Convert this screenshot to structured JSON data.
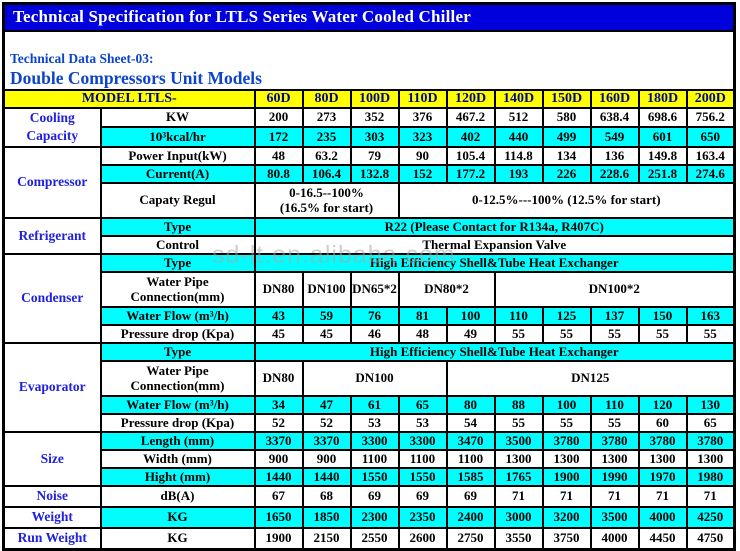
{
  "colors": {
    "title_bg": "#0000dd",
    "title_text": "#ffffff",
    "subtitle_text": "#0c44cc",
    "header_bg": "#ffff00",
    "header_text": "#000a8f",
    "category_text": "#2020dd",
    "cyan_row": "#00feff",
    "border": "#000000",
    "watermark": "#a8a8a8"
  },
  "header": {
    "title": "Technical Specification for LTLS Series Water Cooled Chiller",
    "sheet_label": "Technical Data Sheet-03:",
    "sheet_value": "Double Compressors Unit Models"
  },
  "watermark": "sd-lt.en.alibaba.com",
  "table": {
    "model_label": "MODEL LTLS-",
    "models": [
      "60D",
      "80D",
      "100D",
      "110D",
      "120D",
      "140D",
      "150D",
      "160D",
      "180D",
      "200D"
    ],
    "sections": [
      {
        "category": "Cooling\nCapacity",
        "rows": [
          {
            "label": "KW",
            "bg": "white",
            "cells": [
              "200",
              "273",
              "352",
              "376",
              "467.2",
              "512",
              "580",
              "638.4",
              "698.6",
              "756.2"
            ]
          },
          {
            "label": "10³kcal/hr",
            "bg": "cyan",
            "cells": [
              "172",
              "235",
              "303",
              "323",
              "402",
              "440",
              "499",
              "549",
              "601",
              "650"
            ]
          }
        ]
      },
      {
        "category": "Compressor",
        "rows": [
          {
            "label": "Power Input(kW)",
            "bg": "white",
            "cells": [
              "48",
              "63.2",
              "79",
              "90",
              "105.4",
              "114.8",
              "134",
              "136",
              "149.8",
              "163.4"
            ]
          },
          {
            "label": "Current(A)",
            "bg": "cyan",
            "cells": [
              "80.8",
              "106.4",
              "132.8",
              "152",
              "177.2",
              "193",
              "226",
              "228.6",
              "251.8",
              "274.6"
            ]
          },
          {
            "label": "Capaty Regul",
            "bg": "white",
            "tall": true,
            "cells": [
              {
                "t": "0-16.5--100%\n(16.5% for start)",
                "s": 3
              },
              {
                "t": "0-12.5%---100% (12.5% for start)",
                "s": 7
              }
            ]
          }
        ]
      },
      {
        "category": "Refrigerant",
        "rows": [
          {
            "label": "Type",
            "bg": "cyan",
            "cells": [
              {
                "t": "R22 (Please Contact for R134a, R407C)",
                "s": 10
              }
            ]
          },
          {
            "label": "Control",
            "bg": "white",
            "cells": [
              {
                "t": "Thermal Expansion Valve",
                "s": 10
              }
            ]
          }
        ]
      },
      {
        "category": "Condenser",
        "rows": [
          {
            "label": "Type",
            "bg": "cyan",
            "cells": [
              {
                "t": "High Efficiency Shell&Tube Heat Exchanger",
                "s": 10
              }
            ]
          },
          {
            "label": "Water Pipe\nConnection(mm)",
            "bg": "white",
            "tall": true,
            "cells": [
              {
                "t": "DN80",
                "s": 1
              },
              {
                "t": "DN100",
                "s": 1
              },
              {
                "t": "DN65*2",
                "s": 1
              },
              {
                "t": "DN80*2",
                "s": 2
              },
              {
                "t": "DN100*2",
                "s": 5
              }
            ]
          },
          {
            "label": "Water Flow (m³/h)",
            "bg": "cyan",
            "cells": [
              "43",
              "59",
              "76",
              "81",
              "100",
              "110",
              "125",
              "137",
              "150",
              "163"
            ]
          },
          {
            "label": "Pressure drop (Kpa)",
            "bg": "white",
            "cells": [
              "45",
              "45",
              "46",
              "48",
              "49",
              "55",
              "55",
              "55",
              "55",
              "55"
            ]
          }
        ]
      },
      {
        "category": "Evaporator",
        "rows": [
          {
            "label": "Type",
            "bg": "cyan",
            "cells": [
              {
                "t": "High Efficiency Shell&Tube Heat Exchanger",
                "s": 10
              }
            ]
          },
          {
            "label": "Water Pipe\nConnection(mm)",
            "bg": "white",
            "tall": true,
            "cells": [
              {
                "t": "DN80",
                "s": 1
              },
              {
                "t": "DN100",
                "s": 3
              },
              {
                "t": "DN125",
                "s": 6
              }
            ]
          },
          {
            "label": "Water Flow (m³/h)",
            "bg": "cyan",
            "cells": [
              "34",
              "47",
              "61",
              "65",
              "80",
              "88",
              "100",
              "110",
              "120",
              "130"
            ]
          },
          {
            "label": "Pressure drop (Kpa)",
            "bg": "white",
            "cells": [
              "52",
              "52",
              "53",
              "53",
              "54",
              "55",
              "55",
              "55",
              "60",
              "65"
            ]
          }
        ]
      },
      {
        "category": "Size",
        "rows": [
          {
            "label": "Length (mm)",
            "bg": "cyan",
            "cells": [
              "3370",
              "3370",
              "3300",
              "3300",
              "3470",
              "3500",
              "3780",
              "3780",
              "3780",
              "3780"
            ]
          },
          {
            "label": "Width (mm)",
            "bg": "white",
            "cells": [
              "900",
              "900",
              "1100",
              "1100",
              "1100",
              "1300",
              "1300",
              "1300",
              "1300",
              "1300"
            ]
          },
          {
            "label": "Hight (mm)",
            "bg": "cyan",
            "cells": [
              "1440",
              "1440",
              "1550",
              "1550",
              "1585",
              "1765",
              "1900",
              "1990",
              "1970",
              "1980"
            ]
          }
        ]
      },
      {
        "category": "Noise",
        "rows": [
          {
            "label": "dB(A)",
            "bg": "white",
            "cells": [
              "67",
              "68",
              "69",
              "69",
              "69",
              "71",
              "71",
              "71",
              "71",
              "71"
            ]
          }
        ]
      },
      {
        "category": "Weight",
        "rows": [
          {
            "label": "KG",
            "bg": "cyan",
            "cells": [
              "1650",
              "1850",
              "2300",
              "2350",
              "2400",
              "3000",
              "3200",
              "3500",
              "4000",
              "4250"
            ]
          }
        ]
      },
      {
        "category": "Run Weight",
        "rows": [
          {
            "label": "KG",
            "bg": "white",
            "cells": [
              "1900",
              "2150",
              "2550",
              "2600",
              "2750",
              "3550",
              "3750",
              "4000",
              "4450",
              "4750"
            ]
          }
        ]
      }
    ]
  }
}
